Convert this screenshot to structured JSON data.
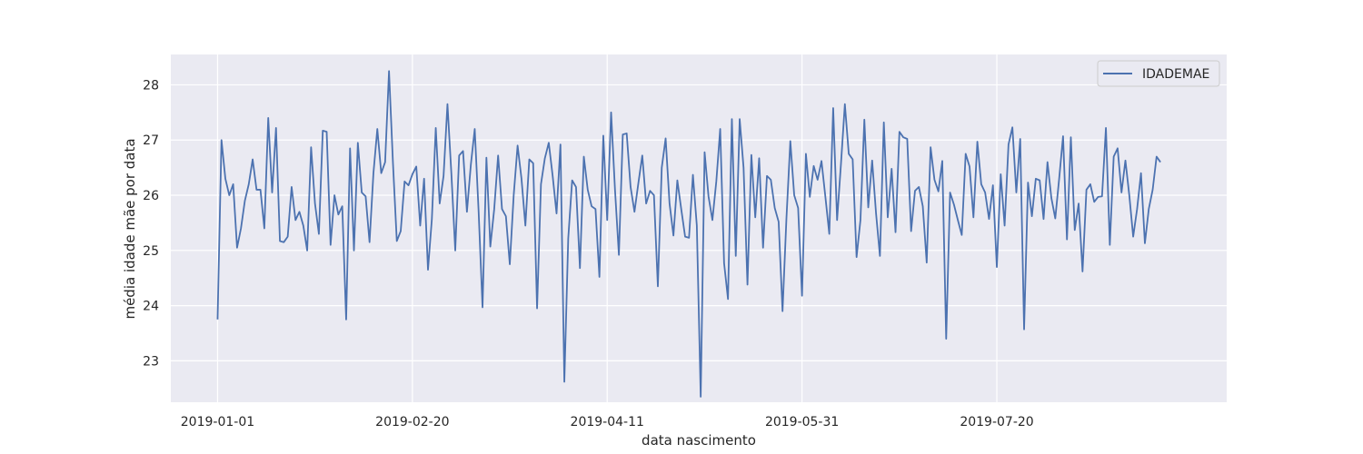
{
  "chart_data": {
    "type": "line",
    "xlabel": "data nascimento",
    "ylabel": "média idade mãe por data",
    "x_start": "2019-01-01",
    "x_end": "2019-09-10",
    "xlim": [
      "2018-12-20",
      "2019-09-17"
    ],
    "ylim": [
      22.25,
      28.55
    ],
    "x_ticks": [
      {
        "date": "2019-01-01",
        "label": "2019-01-01"
      },
      {
        "date": "2019-02-20",
        "label": "2019-02-20"
      },
      {
        "date": "2019-04-11",
        "label": "2019-04-11"
      },
      {
        "date": "2019-05-31",
        "label": "2019-05-31"
      },
      {
        "date": "2019-07-20",
        "label": "2019-07-20"
      }
    ],
    "y_ticks": [
      {
        "value": 23,
        "label": "23"
      },
      {
        "value": 24,
        "label": "24"
      },
      {
        "value": 25,
        "label": "25"
      },
      {
        "value": 26,
        "label": "26"
      },
      {
        "value": 27,
        "label": "27"
      },
      {
        "value": 28,
        "label": "28"
      }
    ],
    "grid": true,
    "legend_position": "top-right",
    "series": [
      {
        "name": "IDADEMAE",
        "color": "#4c72b0",
        "values": [
          23.75,
          27.0,
          26.3,
          26.0,
          26.2,
          25.05,
          25.4,
          25.9,
          26.2,
          26.65,
          26.1,
          26.1,
          25.4,
          27.4,
          26.05,
          27.22,
          25.17,
          25.15,
          25.25,
          26.15,
          25.55,
          25.7,
          25.45,
          25.0,
          26.87,
          25.85,
          25.3,
          27.17,
          27.15,
          25.1,
          26.0,
          25.65,
          25.8,
          23.75,
          26.85,
          25.0,
          26.95,
          26.05,
          25.98,
          25.15,
          26.4,
          27.2,
          26.4,
          26.6,
          28.25,
          26.6,
          25.17,
          25.35,
          26.25,
          26.18,
          26.38,
          26.52,
          25.45,
          26.3,
          24.65,
          25.57,
          27.22,
          25.85,
          26.35,
          27.65,
          26.4,
          25.0,
          26.72,
          26.8,
          25.7,
          26.55,
          27.2,
          25.7,
          23.97,
          26.68,
          25.07,
          25.75,
          26.72,
          25.75,
          25.62,
          24.75,
          26.0,
          26.9,
          26.3,
          25.45,
          26.65,
          26.58,
          23.95,
          26.2,
          26.67,
          26.95,
          26.35,
          25.67,
          26.92,
          22.62,
          25.22,
          26.27,
          26.15,
          24.68,
          26.7,
          26.1,
          25.8,
          25.75,
          24.52,
          27.08,
          25.55,
          27.5,
          26.1,
          24.92,
          27.1,
          27.12,
          26.15,
          25.7,
          26.22,
          26.72,
          25.85,
          26.08,
          26.0,
          24.35,
          26.5,
          27.03,
          25.85,
          25.27,
          26.27,
          25.75,
          25.25,
          25.23,
          26.37,
          25.45,
          22.35,
          26.78,
          25.98,
          25.55,
          26.25,
          27.2,
          24.77,
          24.12,
          27.38,
          24.9,
          27.38,
          26.5,
          24.38,
          26.73,
          25.6,
          26.67,
          25.05,
          26.35,
          26.28,
          25.77,
          25.52,
          23.9,
          25.58,
          26.98,
          26.0,
          25.77,
          24.18,
          26.75,
          25.97,
          26.53,
          26.28,
          26.62,
          25.97,
          25.3,
          27.58,
          25.55,
          26.57,
          27.65,
          26.75,
          26.65,
          24.88,
          25.55,
          27.37,
          25.78,
          26.63,
          25.67,
          24.9,
          27.32,
          25.6,
          26.48,
          25.33,
          27.15,
          27.05,
          27.02,
          25.35,
          26.08,
          26.15,
          25.8,
          24.78,
          26.87,
          26.28,
          26.07,
          26.62,
          23.4,
          26.05,
          25.83,
          25.55,
          25.28,
          26.75,
          26.52,
          25.6,
          26.97,
          26.2,
          26.05,
          25.57,
          26.18,
          24.7,
          26.38,
          25.45,
          26.92,
          27.23,
          26.05,
          27.02,
          23.57,
          26.23,
          25.62,
          26.3,
          26.27,
          25.57,
          26.6,
          25.95,
          25.58,
          26.3,
          27.07,
          25.2,
          27.05,
          25.37,
          25.85,
          24.62,
          26.1,
          26.2,
          25.88,
          25.97,
          25.98,
          27.22,
          25.1,
          26.7,
          26.85,
          26.05,
          26.63,
          26.0,
          25.25,
          25.75,
          26.4,
          25.13,
          25.75,
          26.1,
          26.7,
          26.6
        ]
      }
    ]
  }
}
